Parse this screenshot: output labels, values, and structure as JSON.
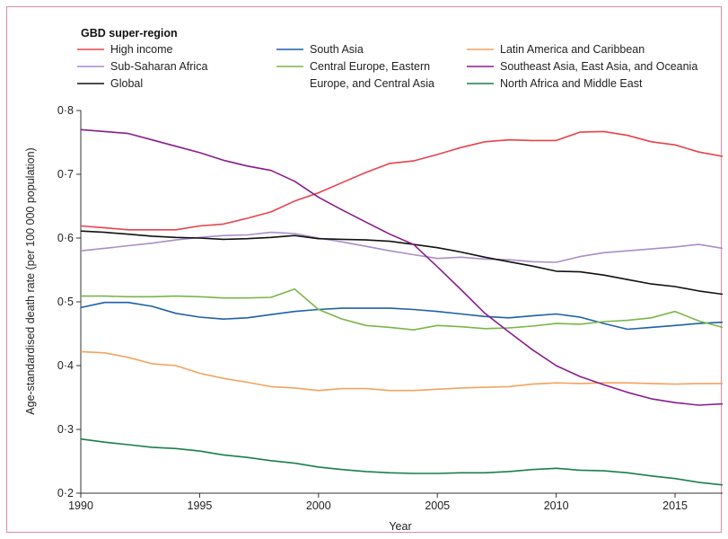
{
  "chart_data": {
    "type": "line",
    "legend_title": "GBD super-region",
    "xlabel": "Year",
    "ylabel": "Age-standardised death rate (per 100 000 population)",
    "xlim": [
      1990,
      2017
    ],
    "ylim": [
      0.2,
      0.8
    ],
    "x_ticks": [
      1990,
      1995,
      2000,
      2005,
      2010,
      2015
    ],
    "x_tick_labels": [
      "1990",
      "1995",
      "2000",
      "2005",
      "2010",
      "2015"
    ],
    "y_ticks": [
      0.2,
      0.3,
      0.4,
      0.5,
      0.6,
      0.7,
      0.8
    ],
    "y_tick_labels": [
      "0·2",
      "0·3",
      "0·4",
      "0·5",
      "0·6",
      "0·7",
      "0·8"
    ],
    "grid": false,
    "legend_position": "top",
    "x": [
      1990,
      1991,
      1992,
      1993,
      1994,
      1995,
      1996,
      1997,
      1998,
      1999,
      2000,
      2001,
      2002,
      2003,
      2004,
      2005,
      2006,
      2007,
      2008,
      2009,
      2010,
      2011,
      2012,
      2013,
      2014,
      2015,
      2016,
      2017
    ],
    "series": [
      {
        "name": "High income",
        "color": "#e8424a",
        "values": [
          0.619,
          0.616,
          0.613,
          0.613,
          0.613,
          0.619,
          0.622,
          0.631,
          0.641,
          0.658,
          0.671,
          0.687,
          0.703,
          0.717,
          0.721,
          0.731,
          0.742,
          0.751,
          0.754,
          0.753,
          0.753,
          0.766,
          0.767,
          0.761,
          0.751,
          0.746,
          0.735,
          0.728
        ]
      },
      {
        "name": "Sub-Saharan Africa",
        "color": "#a98ec8",
        "values": [
          0.58,
          0.584,
          0.588,
          0.592,
          0.597,
          0.601,
          0.604,
          0.605,
          0.609,
          0.607,
          0.6,
          0.594,
          0.587,
          0.58,
          0.574,
          0.568,
          0.57,
          0.567,
          0.566,
          0.563,
          0.562,
          0.571,
          0.577,
          0.58,
          0.583,
          0.586,
          0.59,
          0.584
        ]
      },
      {
        "name": "Global",
        "color": "#111111",
        "values": [
          0.611,
          0.609,
          0.606,
          0.603,
          0.601,
          0.6,
          0.598,
          0.599,
          0.601,
          0.604,
          0.599,
          0.598,
          0.597,
          0.595,
          0.59,
          0.585,
          0.578,
          0.57,
          0.563,
          0.556,
          0.548,
          0.547,
          0.542,
          0.535,
          0.528,
          0.524,
          0.517,
          0.512
        ]
      },
      {
        "name": "South Asia",
        "color": "#1f5fa8",
        "values": [
          0.491,
          0.499,
          0.499,
          0.493,
          0.482,
          0.476,
          0.473,
          0.475,
          0.48,
          0.485,
          0.488,
          0.49,
          0.49,
          0.49,
          0.488,
          0.485,
          0.481,
          0.477,
          0.475,
          0.478,
          0.481,
          0.476,
          0.466,
          0.457,
          0.46,
          0.463,
          0.466,
          0.468
        ]
      },
      {
        "name": "Central Europe, Eastern Europe, and Central Asia",
        "color": "#7ab648",
        "values": [
          0.509,
          0.509,
          0.508,
          0.508,
          0.509,
          0.508,
          0.506,
          0.506,
          0.507,
          0.52,
          0.488,
          0.473,
          0.463,
          0.46,
          0.456,
          0.463,
          0.461,
          0.458,
          0.459,
          0.462,
          0.466,
          0.465,
          0.469,
          0.471,
          0.475,
          0.485,
          0.47,
          0.46
        ]
      },
      {
        "name": "Latin America and Caribbean",
        "color": "#f5a25d",
        "values": [
          0.422,
          0.42,
          0.413,
          0.403,
          0.4,
          0.388,
          0.38,
          0.374,
          0.367,
          0.365,
          0.361,
          0.364,
          0.364,
          0.361,
          0.361,
          0.363,
          0.365,
          0.366,
          0.367,
          0.371,
          0.373,
          0.372,
          0.373,
          0.373,
          0.372,
          0.371,
          0.372,
          0.372
        ]
      },
      {
        "name": "Southeast Asia, East Asia, and Oceania",
        "color": "#8b1c8c",
        "values": [
          0.77,
          0.767,
          0.764,
          0.754,
          0.744,
          0.734,
          0.722,
          0.713,
          0.706,
          0.689,
          0.664,
          0.644,
          0.625,
          0.606,
          0.59,
          0.555,
          0.519,
          0.482,
          0.453,
          0.425,
          0.4,
          0.383,
          0.37,
          0.358,
          0.348,
          0.342,
          0.338,
          0.34
        ]
      },
      {
        "name": "North Africa and Middle East",
        "color": "#1a7f4b",
        "values": [
          0.285,
          0.28,
          0.276,
          0.272,
          0.27,
          0.266,
          0.26,
          0.256,
          0.251,
          0.247,
          0.241,
          0.237,
          0.234,
          0.232,
          0.231,
          0.231,
          0.232,
          0.232,
          0.234,
          0.237,
          0.239,
          0.236,
          0.235,
          0.232,
          0.227,
          0.223,
          0.217,
          0.213
        ]
      }
    ],
    "legend_layout": [
      {
        "series": 0,
        "col": 0,
        "row": 0,
        "lines": [
          "High income"
        ]
      },
      {
        "series": 1,
        "col": 0,
        "row": 1,
        "lines": [
          "Sub-Saharan Africa"
        ]
      },
      {
        "series": 2,
        "col": 0,
        "row": 2,
        "lines": [
          "Global"
        ]
      },
      {
        "series": 3,
        "col": 1,
        "row": 0,
        "lines": [
          "South Asia"
        ]
      },
      {
        "series": 4,
        "col": 1,
        "row": 1,
        "lines": [
          "Central Europe, Eastern",
          "Europe, and Central Asia"
        ]
      },
      {
        "series": 5,
        "col": 2,
        "row": 0,
        "lines": [
          "Latin America and Caribbean"
        ]
      },
      {
        "series": 6,
        "col": 2,
        "row": 1,
        "lines": [
          "Southeast Asia, East Asia, and Oceania"
        ]
      },
      {
        "series": 7,
        "col": 2,
        "row": 2,
        "lines": [
          "North Africa and Middle East"
        ]
      }
    ]
  }
}
